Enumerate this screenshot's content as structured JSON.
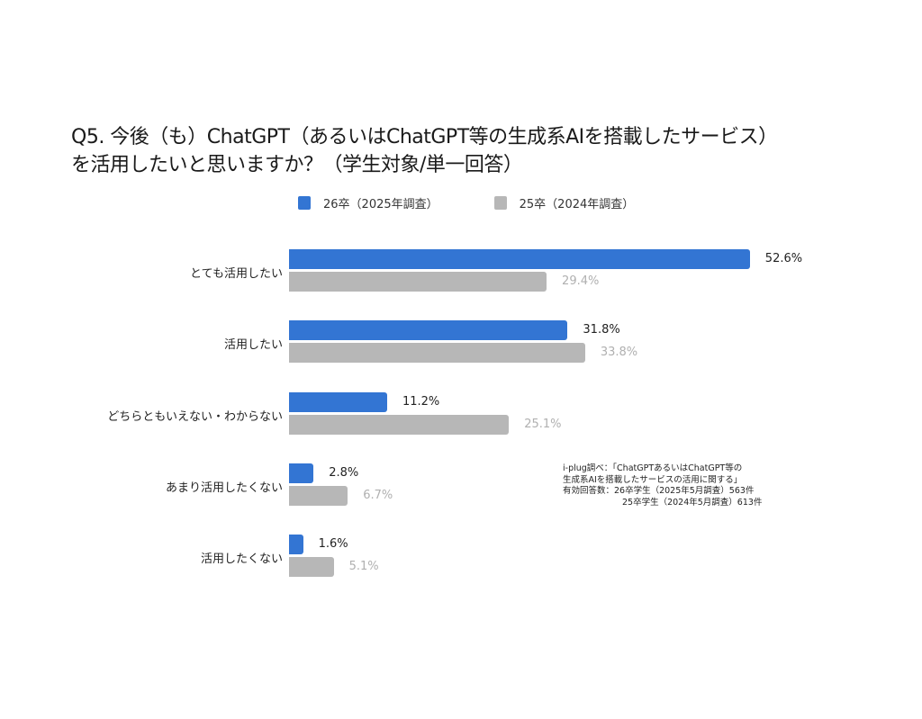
{
  "title": {
    "line1": "Q5. 今後（も）ChatGPT（あるいはChatGPT等の生成系AIを搭載したサービス）",
    "line2": "を活用したいと思いますか？（学生対象/単一回答）"
  },
  "legend": [
    {
      "label": "26卒（2025年調査）",
      "color": "#3375d3"
    },
    {
      "label": "25卒（2024年調査）",
      "color": "#b7b7b7"
    }
  ],
  "note": {
    "line1": "i-plug調べ：「ChatGPTあるいはChatGPT等の",
    "line2": "生成系AIを搭載したサービスの活用に関する」",
    "line3": "有効回答数：26卒学生（2025年5月調査）563件",
    "line4": "25卒学生（2024年5月調査）613件"
  },
  "chart_data": {
    "type": "bar",
    "orientation": "horizontal",
    "title": "Q5. 今後（も）ChatGPT（あるいはChatGPT等の生成系AIを搭載したサービス）を活用したいと思いますか？（学生対象/単一回答）",
    "xlabel": "",
    "ylabel": "",
    "unit": "%",
    "grid": false,
    "legend_position": "top",
    "xlim": [
      0,
      60
    ],
    "categories": [
      "とても活用したい",
      "活用したい",
      "どちらともいえない・わからない",
      "あまり活用したくない",
      "活用したくない"
    ],
    "series": [
      {
        "name": "26卒（2025年調査）",
        "color": "#3375d3",
        "values": [
          52.6,
          31.8,
          11.2,
          2.8,
          1.6
        ],
        "labels": [
          "52.6%",
          "31.8%",
          "11.2%",
          "2.8%",
          "1.6%"
        ]
      },
      {
        "name": "25卒（2024年調査）",
        "color": "#b7b7b7",
        "values": [
          29.4,
          33.8,
          25.1,
          6.7,
          5.1
        ],
        "labels": [
          "29.4%",
          "33.8%",
          "25.1%",
          "6.7%",
          "5.1%"
        ]
      }
    ]
  }
}
